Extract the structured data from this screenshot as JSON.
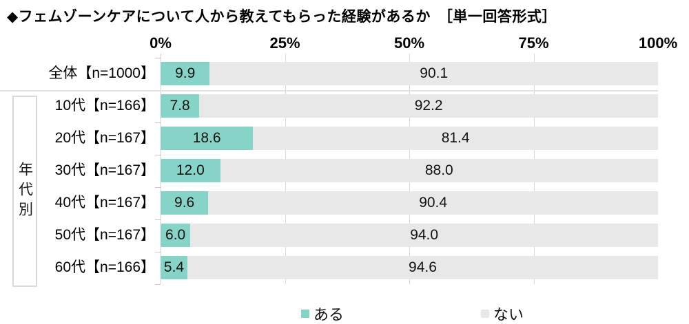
{
  "title": "◆フェムゾーンケアについて人から教えてもらった経験があるか　［単一回答形式］",
  "x_axis": {
    "tick_labels": [
      "0%",
      "25%",
      "50%",
      "75%",
      "100%"
    ]
  },
  "group_label": "年代別",
  "colors": {
    "yes": "#86d4c7",
    "no": "#e8e8e8",
    "grid": "#d9d9d9"
  },
  "legend": {
    "items": [
      {
        "label": "ある",
        "color": "#86d4c7"
      },
      {
        "label": "ない",
        "color": "#e8e8e8"
      }
    ]
  },
  "rows": [
    {
      "label": "全体【n=1000】",
      "yes": "9.9",
      "no": "90.1"
    },
    {
      "label": "10代【n=166】",
      "yes": "7.8",
      "no": "92.2"
    },
    {
      "label": "20代【n=167】",
      "yes": "18.6",
      "no": "81.4"
    },
    {
      "label": "30代【n=167】",
      "yes": "12.0",
      "no": "88.0"
    },
    {
      "label": "40代【n=167】",
      "yes": "9.6",
      "no": "90.4"
    },
    {
      "label": "50代【n=167】",
      "yes": "6.0",
      "no": "94.0"
    },
    {
      "label": "60代【n=166】",
      "yes": "5.4",
      "no": "94.6"
    }
  ],
  "chart_data": {
    "type": "bar",
    "orientation": "horizontal",
    "stacked": true,
    "title": "フェムゾーンケアについて人から教えてもらった経験があるか ［単一回答形式］",
    "categories": [
      "全体【n=1000】",
      "10代【n=166】",
      "20代【n=167】",
      "30代【n=167】",
      "40代【n=167】",
      "50代【n=167】",
      "60代【n=166】"
    ],
    "series": [
      {
        "name": "ある",
        "values": [
          9.9,
          7.8,
          18.6,
          12.0,
          9.6,
          6.0,
          5.4
        ]
      },
      {
        "name": "ない",
        "values": [
          90.1,
          92.2,
          81.4,
          88.0,
          90.4,
          94.0,
          94.6
        ]
      }
    ],
    "xlim": [
      0,
      100
    ],
    "x_tick_labels": [
      "0%",
      "25%",
      "50%",
      "75%",
      "100%"
    ],
    "unit": "%",
    "legend_position": "bottom",
    "grid": "vertical-at-25-50-75"
  }
}
